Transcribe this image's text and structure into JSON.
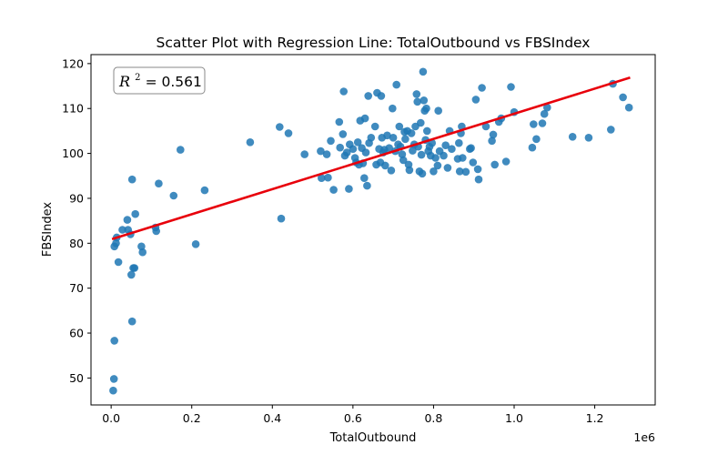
{
  "chart_data": {
    "type": "scatter",
    "title": "Scatter Plot with Regression Line: TotalOutbound vs FBSIndex",
    "xlabel": "TotalOutbound",
    "ylabel": "FBSIndex",
    "x_offset_label": "1e6",
    "annotation": {
      "text_base": "R",
      "text_sup": "2",
      "text_rest": " = 0.561",
      "position": "top-left"
    },
    "xlim": [
      -50000,
      1350000
    ],
    "ylim": [
      44,
      122
    ],
    "x_ticks": [
      0,
      200000,
      400000,
      600000,
      800000,
      1000000,
      1200000
    ],
    "x_tick_labels": [
      "0.0",
      "0.2",
      "0.4",
      "0.6",
      "0.8",
      "1.0",
      "1.2"
    ],
    "y_ticks": [
      50,
      60,
      70,
      80,
      90,
      100,
      110,
      120
    ],
    "y_tick_labels": [
      "50",
      "60",
      "70",
      "80",
      "90",
      "100",
      "110",
      "120"
    ],
    "grid": false,
    "colors": {
      "points": "#1f77b4",
      "regression": "#e8000b"
    },
    "regression": {
      "x": [
        5000,
        1285000
      ],
      "y": [
        81.0,
        116.8
      ]
    },
    "points": [
      [
        5000,
        47.2
      ],
      [
        7000,
        49.8
      ],
      [
        8000,
        58.3
      ],
      [
        8000,
        79.3
      ],
      [
        12000,
        80.0
      ],
      [
        14000,
        81.3
      ],
      [
        18000,
        75.8
      ],
      [
        28000,
        83.0
      ],
      [
        40000,
        85.2
      ],
      [
        42000,
        83.0
      ],
      [
        48000,
        82.0
      ],
      [
        50000,
        73.0
      ],
      [
        52000,
        94.2
      ],
      [
        55000,
        74.5
      ],
      [
        52000,
        62.6
      ],
      [
        58000,
        74.5
      ],
      [
        60000,
        86.5
      ],
      [
        75000,
        79.3
      ],
      [
        78000,
        78.0
      ],
      [
        110000,
        83.5
      ],
      [
        112000,
        82.7
      ],
      [
        118000,
        93.3
      ],
      [
        155000,
        90.6
      ],
      [
        172000,
        100.8
      ],
      [
        210000,
        79.8
      ],
      [
        232000,
        91.8
      ],
      [
        345000,
        102.5
      ],
      [
        418000,
        105.9
      ],
      [
        422000,
        85.5
      ],
      [
        440000,
        104.5
      ],
      [
        480000,
        99.8
      ],
      [
        520000,
        100.5
      ],
      [
        522000,
        94.5
      ],
      [
        535000,
        99.8
      ],
      [
        538000,
        94.6
      ],
      [
        545000,
        102.8
      ],
      [
        552000,
        91.9
      ],
      [
        566000,
        107.0
      ],
      [
        568000,
        101.3
      ],
      [
        575000,
        104.3
      ],
      [
        577000,
        113.8
      ],
      [
        580000,
        99.5
      ],
      [
        585000,
        100.2
      ],
      [
        590000,
        92.1
      ],
      [
        592000,
        102.0
      ],
      [
        600000,
        101.0
      ],
      [
        605000,
        99.0
      ],
      [
        608000,
        98.0
      ],
      [
        612000,
        102.5
      ],
      [
        615000,
        97.5
      ],
      [
        618000,
        107.3
      ],
      [
        622000,
        101.2
      ],
      [
        625000,
        97.8
      ],
      [
        628000,
        94.5
      ],
      [
        630000,
        107.8
      ],
      [
        632000,
        100.2
      ],
      [
        635000,
        92.8
      ],
      [
        638000,
        112.8
      ],
      [
        640000,
        102.3
      ],
      [
        645000,
        103.5
      ],
      [
        655000,
        106.0
      ],
      [
        658000,
        97.5
      ],
      [
        660000,
        113.5
      ],
      [
        665000,
        101.0
      ],
      [
        668000,
        98.0
      ],
      [
        670000,
        112.8
      ],
      [
        672000,
        103.5
      ],
      [
        675000,
        100.2
      ],
      [
        678000,
        100.8
      ],
      [
        680000,
        97.3
      ],
      [
        685000,
        104.0
      ],
      [
        690000,
        101.2
      ],
      [
        695000,
        96.2
      ],
      [
        698000,
        110.0
      ],
      [
        700000,
        103.5
      ],
      [
        705000,
        100.5
      ],
      [
        708000,
        115.3
      ],
      [
        712000,
        102.0
      ],
      [
        715000,
        106.0
      ],
      [
        718000,
        101.5
      ],
      [
        722000,
        99.8
      ],
      [
        725000,
        98.5
      ],
      [
        728000,
        104.8
      ],
      [
        730000,
        103.2
      ],
      [
        735000,
        105.0
      ],
      [
        738000,
        97.5
      ],
      [
        740000,
        96.3
      ],
      [
        745000,
        104.5
      ],
      [
        748000,
        100.6
      ],
      [
        752000,
        102.0
      ],
      [
        755000,
        106.0
      ],
      [
        758000,
        113.2
      ],
      [
        760000,
        111.5
      ],
      [
        762000,
        101.5
      ],
      [
        765000,
        96.0
      ],
      [
        768000,
        106.8
      ],
      [
        770000,
        99.7
      ],
      [
        772000,
        95.5
      ],
      [
        774000,
        118.2
      ],
      [
        776000,
        111.8
      ],
      [
        778000,
        109.5
      ],
      [
        780000,
        103.0
      ],
      [
        782000,
        110.0
      ],
      [
        784000,
        105.0
      ],
      [
        787000,
        100.5
      ],
      [
        790000,
        101.5
      ],
      [
        793000,
        99.5
      ],
      [
        796000,
        102.3
      ],
      [
        800000,
        96.0
      ],
      [
        805000,
        99.0
      ],
      [
        810000,
        97.3
      ],
      [
        812000,
        109.5
      ],
      [
        815000,
        100.5
      ],
      [
        825000,
        99.5
      ],
      [
        830000,
        101.8
      ],
      [
        835000,
        96.8
      ],
      [
        840000,
        105.0
      ],
      [
        845000,
        101.0
      ],
      [
        860000,
        98.8
      ],
      [
        863000,
        102.3
      ],
      [
        865000,
        96.0
      ],
      [
        868000,
        104.5
      ],
      [
        870000,
        106.0
      ],
      [
        872000,
        99.0
      ],
      [
        880000,
        95.9
      ],
      [
        890000,
        101.0
      ],
      [
        893000,
        101.2
      ],
      [
        898000,
        98.0
      ],
      [
        905000,
        112.0
      ],
      [
        910000,
        96.5
      ],
      [
        912000,
        94.2
      ],
      [
        920000,
        114.6
      ],
      [
        930000,
        106.0
      ],
      [
        945000,
        102.8
      ],
      [
        948000,
        104.2
      ],
      [
        952000,
        97.5
      ],
      [
        962000,
        107.0
      ],
      [
        968000,
        107.8
      ],
      [
        980000,
        98.2
      ],
      [
        992000,
        114.8
      ],
      [
        1000000,
        109.2
      ],
      [
        1045000,
        101.3
      ],
      [
        1048000,
        106.5
      ],
      [
        1055000,
        103.2
      ],
      [
        1070000,
        106.7
      ],
      [
        1075000,
        108.8
      ],
      [
        1082000,
        110.2
      ],
      [
        1145000,
        103.7
      ],
      [
        1185000,
        103.5
      ],
      [
        1240000,
        105.3
      ],
      [
        1245000,
        115.5
      ],
      [
        1270000,
        112.5
      ],
      [
        1285000,
        110.2
      ]
    ]
  }
}
